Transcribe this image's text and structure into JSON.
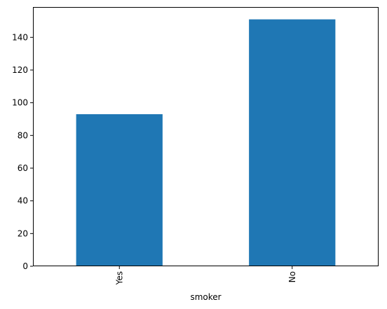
{
  "chart_data": {
    "type": "bar",
    "title": "",
    "xlabel": "smoker",
    "ylabel": "",
    "categories": [
      "Yes",
      "No"
    ],
    "values": [
      93,
      151
    ],
    "ylim": [
      0,
      158.55
    ],
    "yticks": [
      0,
      20,
      40,
      60,
      80,
      100,
      120,
      140
    ],
    "ytick_labels": [
      "0",
      "20",
      "40",
      "60",
      "80",
      "100",
      "120",
      "140"
    ],
    "xtick_rotation": "vertical",
    "grid": false,
    "legend": "none",
    "bar_color": "#1f77b4"
  }
}
